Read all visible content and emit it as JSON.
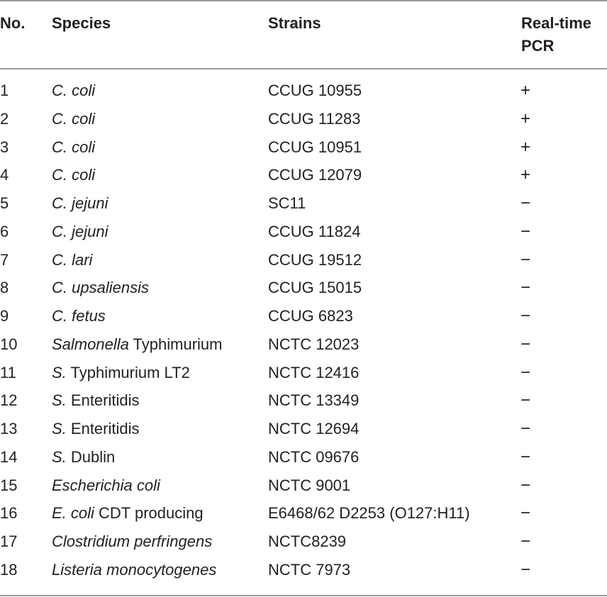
{
  "header": {
    "no": "No.",
    "species": "Species",
    "strains": "Strains",
    "pcr_line1": "Real-time",
    "pcr_line2": "PCR"
  },
  "rows": [
    {
      "no": "1",
      "species_italic": "C. coli",
      "species_plain": "",
      "strain": "CCUG 10955",
      "pcr": "+"
    },
    {
      "no": "2",
      "species_italic": "C. coli",
      "species_plain": "",
      "strain": "CCUG 11283",
      "pcr": "+"
    },
    {
      "no": "3",
      "species_italic": "C. coli",
      "species_plain": "",
      "strain": "CCUG 10951",
      "pcr": "+"
    },
    {
      "no": "4",
      "species_italic": "C. coli",
      "species_plain": "",
      "strain": "CCUG 12079",
      "pcr": "+"
    },
    {
      "no": "5",
      "species_italic": "C. jejuni",
      "species_plain": "",
      "strain": "SC11",
      "pcr": "−"
    },
    {
      "no": "6",
      "species_italic": "C. jejuni",
      "species_plain": "",
      "strain": "CCUG 11824",
      "pcr": "−"
    },
    {
      "no": "7",
      "species_italic": "C. lari",
      "species_plain": "",
      "strain": "CCUG 19512",
      "pcr": "−"
    },
    {
      "no": "8",
      "species_italic": "C. upsaliensis",
      "species_plain": "",
      "strain": "CCUG 15015",
      "pcr": "−"
    },
    {
      "no": "9",
      "species_italic": "C. fetus",
      "species_plain": "",
      "strain": "CCUG 6823",
      "pcr": "−"
    },
    {
      "no": "10",
      "species_italic": "Salmonella",
      "species_plain": " Typhimurium",
      "strain": "NCTC 12023",
      "pcr": "−"
    },
    {
      "no": "11",
      "species_italic": "S.",
      "species_plain": " Typhimurium LT2",
      "strain": "NCTC 12416",
      "pcr": "−"
    },
    {
      "no": "12",
      "species_italic": "S.",
      "species_plain": " Enteritidis",
      "strain": "NCTC 13349",
      "pcr": "−"
    },
    {
      "no": "13",
      "species_italic": "S.",
      "species_plain": " Enteritidis",
      "strain": "NCTC 12694",
      "pcr": "−"
    },
    {
      "no": "14",
      "species_italic": "S.",
      "species_plain": " Dublin",
      "strain": "NCTC 09676",
      "pcr": "−"
    },
    {
      "no": "15",
      "species_italic": "Escherichia coli",
      "species_plain": "",
      "strain": "NCTC 9001",
      "pcr": "−"
    },
    {
      "no": "16",
      "species_italic": "E. coli",
      "species_plain": " CDT producing",
      "strain": "E6468/62 D2253 (O127:H11)",
      "pcr": "−"
    },
    {
      "no": "17",
      "species_italic": "Clostridium perfringens",
      "species_plain": "",
      "strain": "NCTC8239",
      "pcr": "−"
    },
    {
      "no": "18",
      "species_italic": "Listeria monocytogenes",
      "species_plain": "",
      "strain": "NCTC 7973",
      "pcr": "−"
    }
  ]
}
